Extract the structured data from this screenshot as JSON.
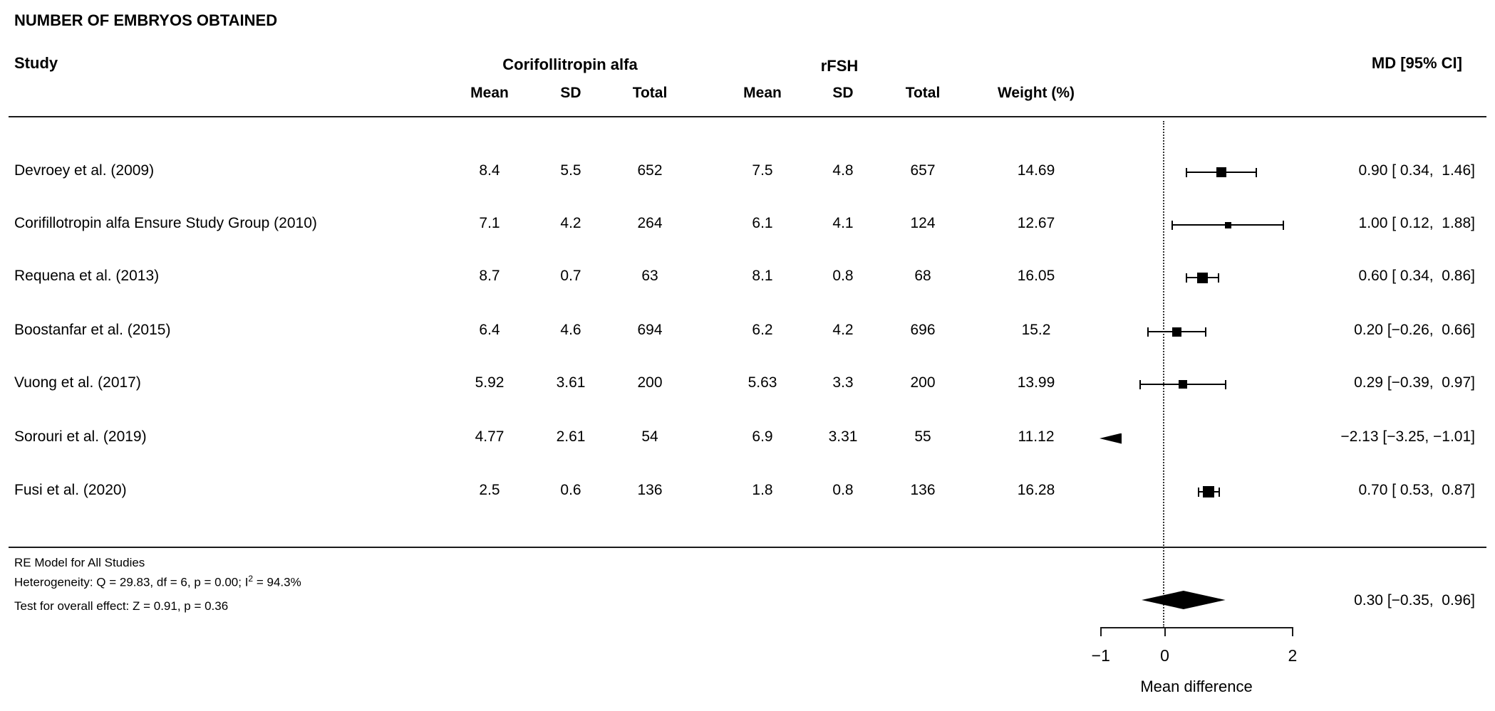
{
  "title": "NUMBER OF EMBRYOS OBTAINED",
  "table": {
    "study_header": "Study",
    "group1_header": "Corifollitropin alfa",
    "group2_header": "rFSH",
    "subheaders": [
      "Mean",
      "SD",
      "Total",
      "Mean",
      "SD",
      "Total",
      "Weight (%)"
    ],
    "md_header": "MD [95% CI]"
  },
  "chart_data": {
    "type": "forest",
    "title": "NUMBER OF EMBRYOS OBTAINED",
    "xlabel": "Mean difference",
    "effect_label": "MD [95% CI]",
    "x_ticks": [
      -1,
      0,
      2
    ],
    "x_tick_labels": [
      "−1",
      "0",
      "2"
    ],
    "x_axis_range": [
      -1.05,
      2
    ],
    "zero_line": 0,
    "studies": [
      {
        "name": "Devroey et al. (2009)",
        "cfa_mean": "8.4",
        "cfa_sd": "5.5",
        "cfa_total": "652",
        "rfsh_mean": "7.5",
        "rfsh_sd": "4.8",
        "rfsh_total": "657",
        "weight": "14.69",
        "md": 0.9,
        "ci_low": 0.34,
        "ci_high": 1.46,
        "md_label": "0.90 [ 0.34,  1.46]",
        "marker_size": 13.5,
        "off_scale": false
      },
      {
        "name": "Corifillotropin alfa Ensure Study Group (2010)",
        "cfa_mean": "7.1",
        "cfa_sd": "4.2",
        "cfa_total": "264",
        "rfsh_mean": "6.1",
        "rfsh_sd": "4.1",
        "rfsh_total": "124",
        "weight": "12.67",
        "md": 1.0,
        "ci_low": 0.12,
        "ci_high": 1.88,
        "md_label": "1.00 [ 0.12,  1.88]",
        "marker_size": 9,
        "off_scale": false
      },
      {
        "name": "Requena et al. (2013)",
        "cfa_mean": "8.7",
        "cfa_sd": "0.7",
        "cfa_total": "63",
        "rfsh_mean": "8.1",
        "rfsh_sd": "0.8",
        "rfsh_total": "68",
        "weight": "16.05",
        "md": 0.6,
        "ci_low": 0.34,
        "ci_high": 0.86,
        "md_label": "0.60 [ 0.34,  0.86]",
        "marker_size": 15,
        "off_scale": false
      },
      {
        "name": "Boostanfar et al. (2015)",
        "cfa_mean": "6.4",
        "cfa_sd": "4.6",
        "cfa_total": "694",
        "rfsh_mean": "6.2",
        "rfsh_sd": "4.2",
        "rfsh_total": "696",
        "weight": "15.2",
        "md": 0.2,
        "ci_low": -0.26,
        "ci_high": 0.66,
        "md_label": "0.20 [−0.26,  0.66]",
        "marker_size": 13,
        "off_scale": false
      },
      {
        "name": "Vuong et al. (2017)",
        "cfa_mean": "5.92",
        "cfa_sd": "3.61",
        "cfa_total": "200",
        "rfsh_mean": "5.63",
        "rfsh_sd": "3.3",
        "rfsh_total": "200",
        "weight": "13.99",
        "md": 0.29,
        "ci_low": -0.39,
        "ci_high": 0.97,
        "md_label": "0.29 [−0.39,  0.97]",
        "marker_size": 12,
        "off_scale": false
      },
      {
        "name": "Sorouri et al. (2019)",
        "cfa_mean": "4.77",
        "cfa_sd": "2.61",
        "cfa_total": "54",
        "rfsh_mean": "6.9",
        "rfsh_sd": "3.31",
        "rfsh_total": "55",
        "weight": "11.12",
        "md": -2.13,
        "ci_low": -3.25,
        "ci_high": -1.01,
        "md_label": "−2.13 [−3.25, −1.01]",
        "marker_size": 12,
        "off_scale": true
      },
      {
        "name": "Fusi et al. (2020)",
        "cfa_mean": "2.5",
        "cfa_sd": "0.6",
        "cfa_total": "136",
        "rfsh_mean": "1.8",
        "rfsh_sd": "0.8",
        "rfsh_total": "136",
        "weight": "16.28",
        "md": 0.7,
        "ci_low": 0.53,
        "ci_high": 0.87,
        "md_label": "0.70 [ 0.53,  0.87]",
        "marker_size": 16,
        "off_scale": false
      }
    ],
    "summary": {
      "model_label": "RE Model for All Studies",
      "heterogeneity_pre": "Heterogeneity: Q = 29.83, df = 6, p = 0.00; I",
      "heterogeneity_sup": "2",
      "heterogeneity_post": " = 94.3%",
      "overall_effect": "Test for overall effect: Z = 0.91, p = 0.36",
      "md": 0.3,
      "ci_low": -0.35,
      "ci_high": 0.96,
      "md_label": "0.30 [−0.35,  0.96]"
    }
  }
}
